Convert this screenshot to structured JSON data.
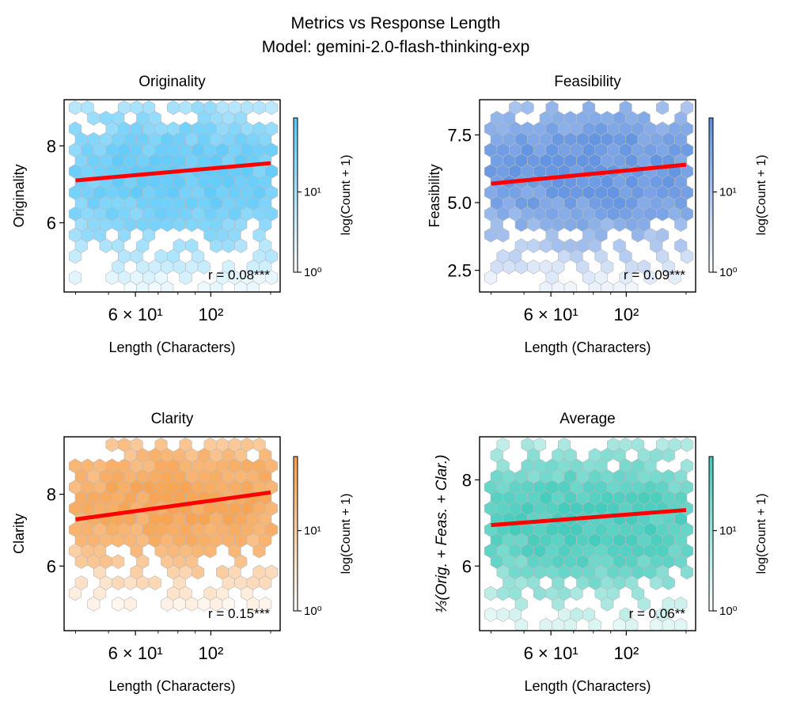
{
  "figure": {
    "title_line1": "Metrics vs Response Length",
    "title_line2": "Model: gemini-2.0-flash-thinking-exp"
  },
  "chart_data": [
    {
      "type": "hexbin",
      "title": "Originality",
      "xlabel": "Length (Characters)",
      "ylabel": "Originality",
      "xscale": "log",
      "xlim": [
        37,
        160
      ],
      "ylim": [
        4.2,
        9.2
      ],
      "xticks": [
        {
          "value": 60,
          "label": "6 × 10¹"
        },
        {
          "value": 100,
          "label": "10²"
        }
      ],
      "yticks": [
        {
          "value": 6,
          "label": "6"
        },
        {
          "value": 8,
          "label": "8"
        }
      ],
      "color": "#5ac8fa",
      "colorbar_label": "log(Count + 1)",
      "colorbar_ticks": [
        "10⁰",
        "10¹"
      ],
      "count_max": 80,
      "center_x": 82,
      "center_y": 7.2,
      "spread_x": 0.3,
      "spread_y": 0.95,
      "fit_line": {
        "x": [
          40,
          150
        ],
        "y": [
          7.1,
          7.55
        ]
      },
      "annotation": "r = 0.08***"
    },
    {
      "type": "hexbin",
      "title": "Feasibility",
      "xlabel": "Length (Characters)",
      "ylabel": "Feasibility",
      "xscale": "log",
      "xlim": [
        37,
        160
      ],
      "ylim": [
        1.7,
        8.8
      ],
      "xticks": [
        {
          "value": 60,
          "label": "6 × 10¹"
        },
        {
          "value": 100,
          "label": "10²"
        }
      ],
      "yticks": [
        {
          "value": 2.5,
          "label": "2.5"
        },
        {
          "value": 5.0,
          "label": "5.0"
        },
        {
          "value": 7.5,
          "label": "7.5"
        }
      ],
      "color": "#5b8fe0",
      "colorbar_label": "log(Count + 1)",
      "colorbar_ticks": [
        "10⁰",
        "10¹"
      ],
      "count_max": 70,
      "center_x": 80,
      "center_y": 6.2,
      "spread_x": 0.3,
      "spread_y": 1.4,
      "fit_line": {
        "x": [
          40,
          150
        ],
        "y": [
          5.7,
          6.4
        ]
      },
      "annotation": "r = 0.09***"
    },
    {
      "type": "hexbin",
      "title": "Clarity",
      "xlabel": "Length (Characters)",
      "ylabel": "Clarity",
      "xscale": "log",
      "xlim": [
        37,
        160
      ],
      "ylim": [
        4.2,
        9.6
      ],
      "xticks": [
        {
          "value": 60,
          "label": "6 × 10¹"
        },
        {
          "value": 100,
          "label": "10²"
        }
      ],
      "yticks": [
        {
          "value": 6,
          "label": "6"
        },
        {
          "value": 8,
          "label": "8"
        }
      ],
      "color": "#f7a04b",
      "colorbar_label": "log(Count + 1)",
      "colorbar_ticks": [
        "10⁰",
        "10¹"
      ],
      "count_max": 80,
      "center_x": 85,
      "center_y": 7.8,
      "spread_x": 0.3,
      "spread_y": 0.95,
      "fit_line": {
        "x": [
          40,
          150
        ],
        "y": [
          7.3,
          8.05
        ]
      },
      "annotation": "r = 0.15***"
    },
    {
      "type": "hexbin",
      "title": "Average",
      "xlabel": "Length (Characters)",
      "ylabel": "⅓(Orig. + Feas. + Clar.)",
      "xscale": "log",
      "xlim": [
        37,
        160
      ],
      "ylim": [
        4.5,
        9.0
      ],
      "xticks": [
        {
          "value": 60,
          "label": "6 × 10¹"
        },
        {
          "value": 100,
          "label": "10²"
        }
      ],
      "yticks": [
        {
          "value": 6,
          "label": "6"
        },
        {
          "value": 8,
          "label": "8"
        }
      ],
      "color": "#3cc9b9",
      "colorbar_label": "log(Count + 1)",
      "colorbar_ticks": [
        "10⁰",
        "10¹"
      ],
      "count_max": 55,
      "center_x": 80,
      "center_y": 7.0,
      "spread_x": 0.3,
      "spread_y": 0.85,
      "fit_line": {
        "x": [
          40,
          150
        ],
        "y": [
          6.95,
          7.3
        ]
      },
      "annotation": "r = 0.06**"
    }
  ]
}
